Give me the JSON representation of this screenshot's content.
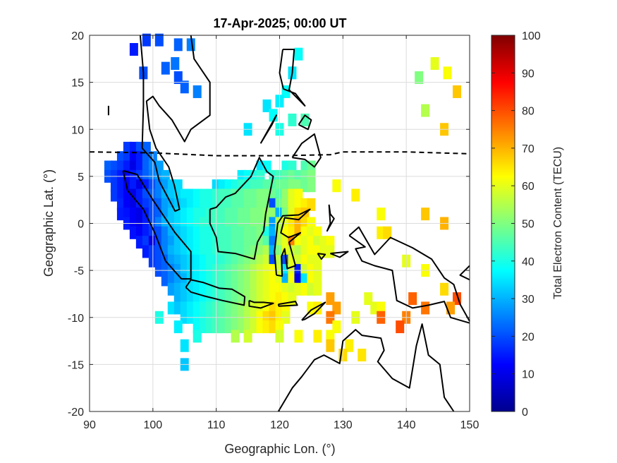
{
  "chart_data": {
    "type": "heatmap",
    "title": "17-Apr-2025; 00:00 UT",
    "xlabel": "Geographic Lon. (°)",
    "ylabel": "Geographic Lat. (°)",
    "xlim": [
      90,
      150
    ],
    "ylim": [
      -20,
      20
    ],
    "xticks": [
      "90",
      "100",
      "110",
      "120",
      "130",
      "140",
      "150"
    ],
    "yticks": [
      "20",
      "15",
      "10",
      "5",
      "0",
      "-5",
      "-10",
      "-15",
      "-20"
    ],
    "grid": true,
    "colorbar": {
      "label": "Total Electron Content (TECU)",
      "range": [
        0,
        100
      ],
      "colormap": "jet",
      "ticks": [
        "100",
        "90",
        "80",
        "70",
        "60",
        "50",
        "40",
        "30",
        "20",
        "10",
        "0"
      ]
    },
    "points": [
      [
        97,
        18.5,
        15
      ],
      [
        99,
        19.5,
        18
      ],
      [
        101,
        19.5,
        20
      ],
      [
        104,
        19,
        22
      ],
      [
        106,
        19,
        25
      ],
      [
        98.5,
        16,
        20
      ],
      [
        102,
        16.5,
        22
      ],
      [
        103.5,
        17,
        24
      ],
      [
        104,
        15.5,
        20
      ],
      [
        105,
        14.5,
        22
      ],
      [
        107,
        14,
        25
      ],
      [
        122,
        16,
        35
      ],
      [
        123,
        18,
        38
      ],
      [
        121,
        14,
        38
      ],
      [
        118,
        12.5,
        35
      ],
      [
        119,
        11.5,
        38
      ],
      [
        120,
        13,
        36
      ],
      [
        122,
        11,
        42
      ],
      [
        124,
        11,
        45
      ],
      [
        115,
        10,
        35
      ],
      [
        120,
        10,
        40
      ],
      [
        142,
        15.5,
        50
      ],
      [
        144.5,
        17,
        60
      ],
      [
        146.5,
        16,
        62
      ],
      [
        148,
        14,
        68
      ],
      [
        143,
        12,
        55
      ],
      [
        146,
        10,
        68
      ]
    ],
    "rows": [
      {
        "lat": 8,
        "lon0": 96,
        "v": [
          18,
          15,
          20,
          22
        ]
      },
      {
        "lat": 7,
        "lon0": 95,
        "v": [
          20,
          18,
          12,
          15,
          22,
          25
        ]
      },
      {
        "lat": 6,
        "lon0": 93,
        "v": [
          22,
          20,
          18,
          15,
          10,
          15,
          22,
          26,
          28
        ]
      },
      {
        "lat": 6,
        "lon0": 117,
        "v": [
          35,
          38
        ]
      },
      {
        "lat": 6,
        "lon0": 121,
        "v": [
          40,
          42
        ]
      },
      {
        "lat": 6,
        "lon0": 124,
        "v": [
          45,
          48
        ]
      },
      {
        "lat": 5,
        "lon0": 93,
        "v": [
          20,
          18,
          15,
          12,
          15,
          18,
          22,
          25,
          28,
          30
        ]
      },
      {
        "lat": 5,
        "lon0": 114,
        "v": [
          36,
          38,
          40,
          42
        ]
      },
      {
        "lat": 5,
        "lon0": 119,
        "v": [
          42,
          44,
          46,
          48,
          46,
          48,
          50
        ]
      },
      {
        "lat": 4,
        "lon0": 94,
        "v": [
          18,
          15,
          12,
          15,
          10,
          15,
          20,
          25,
          28,
          32,
          34
        ]
      },
      {
        "lat": 4,
        "lon0": 110,
        "v": [
          34,
          36,
          38,
          40,
          42,
          42,
          44,
          44,
          46,
          46,
          48,
          48,
          50,
          50,
          48,
          50
        ]
      },
      {
        "lat": 4,
        "lon0": 129,
        "v": [
          62
        ]
      },
      {
        "lat": 3,
        "lon0": 94,
        "v": [
          18,
          15,
          12,
          10,
          15,
          20,
          22,
          25,
          30,
          32,
          34,
          36,
          36,
          38,
          40,
          40,
          42,
          44,
          44,
          46,
          46,
          48,
          48,
          50,
          50,
          48,
          46,
          52,
          60,
          62
        ]
      },
      {
        "lat": 3,
        "lon0": 132,
        "v": [
          64
        ]
      },
      {
        "lat": 2,
        "lon0": 95,
        "v": [
          16,
          12,
          10,
          15,
          18,
          20,
          22,
          28,
          30,
          32,
          34,
          36,
          38,
          40,
          40,
          42,
          44,
          44,
          46,
          46,
          48,
          48,
          50,
          50,
          20,
          48,
          52,
          60,
          62,
          64,
          66
        ]
      },
      {
        "lat": 1,
        "lon0": 95,
        "v": [
          15,
          14,
          12,
          10,
          15,
          20,
          22,
          28,
          32,
          34,
          36,
          38,
          40,
          40,
          42,
          44,
          44,
          46,
          46,
          48,
          48,
          50,
          50,
          52,
          52,
          30,
          50,
          60,
          66,
          68
        ]
      },
      {
        "lat": 1,
        "lon0": 136,
        "v": [
          62
        ]
      },
      {
        "lat": 1,
        "lon0": 143,
        "v": [
          68
        ]
      },
      {
        "lat": 0,
        "lon0": 96,
        "v": [
          15,
          12,
          10,
          15,
          20,
          25,
          30,
          32,
          34,
          36,
          38,
          40,
          42,
          42,
          44,
          44,
          46,
          46,
          48,
          48,
          50,
          50,
          52,
          28,
          55,
          60,
          65,
          70,
          66,
          62
        ]
      },
      {
        "lat": 0,
        "lon0": 146,
        "v": [
          70
        ]
      },
      {
        "lat": -1,
        "lon0": 97,
        "v": [
          14,
          12,
          15,
          18,
          20,
          25,
          30,
          32,
          34,
          36,
          38,
          40,
          40,
          42,
          44,
          44,
          46,
          46,
          48,
          48,
          50,
          40,
          30,
          55,
          62,
          64,
          70,
          62,
          60,
          62
        ]
      },
      {
        "lat": -1,
        "lon0": 136,
        "v": [
          64,
          66
        ]
      },
      {
        "lat": -2,
        "lon0": 98,
        "v": [
          15,
          18,
          10,
          20,
          25,
          28,
          32,
          34,
          36,
          38,
          40,
          40,
          42,
          44,
          44,
          46,
          46,
          48,
          48,
          50,
          46,
          25,
          55,
          60,
          75,
          62,
          60,
          62,
          58,
          60,
          62
        ]
      },
      {
        "lat": -3,
        "lon0": 99,
        "v": [
          15,
          18,
          20,
          25,
          30,
          32,
          34,
          36,
          38,
          40,
          40,
          42,
          44,
          44,
          46,
          46,
          48,
          50,
          52,
          55,
          30,
          50,
          60,
          58,
          55,
          60,
          62,
          62,
          60,
          60
        ]
      },
      {
        "lat": -4,
        "lon0": 100,
        "v": [
          18,
          20,
          22,
          28,
          30,
          32,
          34,
          36,
          38,
          40,
          40,
          42,
          44,
          46,
          48,
          50,
          52,
          55,
          58,
          20,
          56,
          20,
          60,
          58,
          62,
          60,
          60
        ]
      },
      {
        "lat": -4,
        "lon0": 140,
        "v": [
          60
        ]
      },
      {
        "lat": -5,
        "lon0": 101,
        "v": [
          20,
          22,
          25,
          28,
          32,
          34,
          36,
          38,
          40,
          42,
          44,
          46,
          48,
          50,
          52,
          55,
          58,
          60,
          62,
          58,
          35,
          60,
          15,
          58,
          62,
          60
        ]
      },
      {
        "lat": -5,
        "lon0": 143,
        "v": [
          62
        ]
      },
      {
        "lat": -6,
        "lon0": 102,
        "v": [
          22,
          25,
          28,
          30,
          34,
          36,
          38,
          40,
          42,
          44,
          46,
          48,
          50,
          52,
          55,
          58,
          60,
          62,
          60,
          30,
          62,
          10,
          35,
          62,
          60
        ]
      },
      {
        "lat": -7,
        "lon0": 103,
        "v": [
          28,
          30,
          32,
          35,
          36,
          38,
          40,
          42,
          44,
          46,
          48,
          50,
          52,
          55,
          58,
          60,
          62,
          62,
          60,
          58,
          60,
          62,
          58,
          60
        ]
      },
      {
        "lat": -7,
        "lon0": 146,
        "v": [
          66
        ]
      },
      {
        "lat": -8,
        "lon0": 104,
        "v": [
          30,
          32,
          34,
          36,
          38,
          40,
          42,
          44,
          46,
          48,
          50,
          52,
          55,
          58,
          60,
          62,
          64,
          62,
          60
        ]
      },
      {
        "lat": -8,
        "lon0": 128,
        "v": [
          72
        ]
      },
      {
        "lat": -8,
        "lon0": 134,
        "v": [
          60
        ]
      },
      {
        "lat": -8,
        "lon0": 141,
        "v": [
          78
        ]
      },
      {
        "lat": -8,
        "lon0": 148,
        "v": [
          80
        ]
      },
      {
        "lat": -9,
        "lon0": 103,
        "v": [
          35,
          32,
          34,
          36,
          38,
          40,
          42,
          44,
          46,
          48,
          50,
          52,
          55,
          58,
          60,
          62,
          66,
          64,
          62
        ]
      },
      {
        "lat": -9,
        "lon0": 125,
        "v": [
          62,
          64
        ]
      },
      {
        "lat": -9,
        "lon0": 129,
        "v": [
          72
        ]
      },
      {
        "lat": -9,
        "lon0": 135,
        "v": [
          60,
          62
        ]
      },
      {
        "lat": -9,
        "lon0": 143,
        "v": [
          76
        ]
      },
      {
        "lat": -9,
        "lon0": 147,
        "v": [
          72
        ]
      },
      {
        "lat": -10,
        "lon0": 101,
        "v": [
          40
        ]
      },
      {
        "lat": -10,
        "lon0": 105,
        "v": [
          34,
          36,
          38,
          40,
          42,
          44,
          46,
          48,
          50,
          52,
          55,
          58,
          62,
          66,
          68,
          64,
          60
        ]
      },
      {
        "lat": -10,
        "lon0": 128,
        "v": [
          76
        ]
      },
      {
        "lat": -10,
        "lon0": 132,
        "v": [
          60
        ]
      },
      {
        "lat": -10,
        "lon0": 136,
        "v": [
          78
        ]
      },
      {
        "lat": -10,
        "lon0": 140,
        "v": [
          75
        ]
      },
      {
        "lat": -11,
        "lon0": 104,
        "v": [
          36
        ]
      },
      {
        "lat": -11,
        "lon0": 107,
        "v": [
          38,
          40,
          42,
          44,
          46,
          48,
          50,
          52,
          55,
          58,
          62,
          64,
          66,
          62
        ]
      },
      {
        "lat": -11,
        "lon0": 129,
        "v": [
          62
        ]
      },
      {
        "lat": -11,
        "lon0": 139,
        "v": [
          80
        ]
      },
      {
        "lat": -12,
        "lon0": 107,
        "v": [
          40
        ]
      },
      {
        "lat": -12,
        "lon0": 113,
        "v": [
          55
        ]
      },
      {
        "lat": -12,
        "lon0": 115,
        "v": [
          58
        ]
      },
      {
        "lat": -12,
        "lon0": 120,
        "v": [
          58
        ]
      },
      {
        "lat": -12,
        "lon0": 123,
        "v": [
          62
        ]
      },
      {
        "lat": -12,
        "lon0": 126,
        "v": [
          64
        ]
      },
      {
        "lat": -12,
        "lon0": 128,
        "v": [
          62
        ]
      },
      {
        "lat": -13,
        "lon0": 105,
        "v": [
          35
        ]
      },
      {
        "lat": -13,
        "lon0": 128,
        "v": [
          68
        ]
      },
      {
        "lat": -13,
        "lon0": 131,
        "v": [
          64
        ]
      },
      {
        "lat": -14,
        "lon0": 130,
        "v": [
          66
        ]
      },
      {
        "lat": -14,
        "lon0": 133,
        "v": [
          65
        ]
      },
      {
        "lat": -15,
        "lon0": 105,
        "v": [
          32
        ]
      }
    ]
  }
}
